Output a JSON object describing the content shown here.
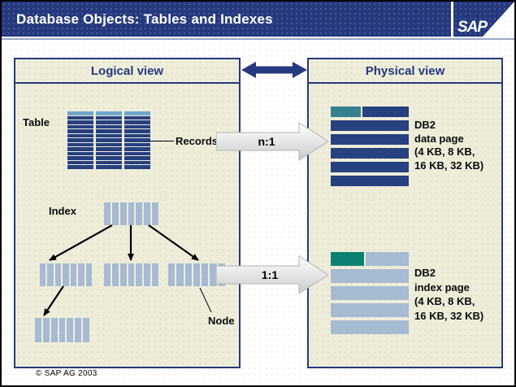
{
  "header": {
    "title": "Database Objects: Tables and Indexes",
    "logo_text": "SAP"
  },
  "logical": {
    "title": "Logical view",
    "table_label": "Table",
    "records_label": "Records",
    "index_label": "Index",
    "node_label": "Node"
  },
  "physical": {
    "title": "Physical view",
    "data_page": {
      "lines": [
        "DB2",
        "data page",
        "(4 KB, 8 KB,",
        "16 KB, 32 KB)"
      ]
    },
    "index_page": {
      "lines": [
        "DB2",
        "index page",
        "(4 KB, 8 KB,",
        "16 KB, 32 KB)"
      ]
    }
  },
  "mappings": {
    "table_to_data_page": "n:1",
    "index_to_index_page": "1:1"
  },
  "footer": {
    "copyright": "© SAP AG 2003"
  },
  "colors": {
    "navy": "#26397e",
    "navy_bar": "#27407f",
    "cream": "#eeedda",
    "cap_blue": "#6fa6c9",
    "node_blue": "#a6bad2",
    "teal_blue": "#35808f",
    "teal_green": "#0b8173"
  }
}
